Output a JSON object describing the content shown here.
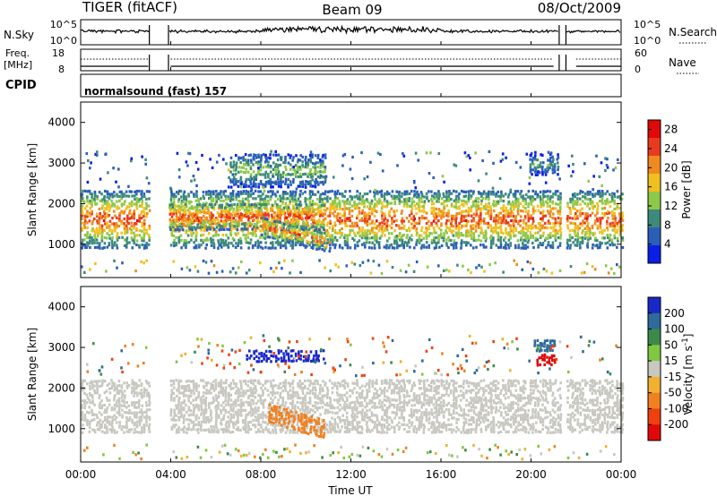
{
  "header": {
    "radar": "TIGER (fitACF)",
    "beam": "Beam 09",
    "date": "08/Oct/2009"
  },
  "noise_panel": {
    "left_label": "N.Sky",
    "left_ticks": [
      "10^5",
      "10^0"
    ],
    "right_label": "N.Search",
    "right_ticks": [
      "10^5",
      "10^0"
    ]
  },
  "freq_panel": {
    "left_label_line1": "Freq.",
    "left_label_line2": "[MHz]",
    "left_ticks": [
      "18",
      "8"
    ],
    "right_label": "Nave",
    "right_ticks": [
      "60",
      "0"
    ]
  },
  "cpid_panel": {
    "label": "CPID",
    "program_text": "normalsound (fast) 157"
  },
  "chart_data": [
    {
      "type": "heatmap",
      "title": "",
      "xlabel": "Time UT",
      "ylabel": "Slant Range [km]",
      "xlim": [
        "00:00",
        "24:00"
      ],
      "ylim": [
        180,
        4500
      ],
      "x_ticks": [
        "00:00",
        "04:00",
        "08:00",
        "12:00",
        "16:00",
        "20:00",
        "00:00"
      ],
      "y_ticks": [
        1000,
        2000,
        3000,
        4000
      ],
      "colorbar": {
        "label": "Power [dB]",
        "ticks": [
          4,
          8,
          12,
          16,
          20,
          24,
          28
        ],
        "range": [
          0,
          30
        ],
        "colors": [
          "#0a1ee6",
          "#2a5fb8",
          "#3c8a7a",
          "#8cc84a",
          "#f0c020",
          "#f08a1e",
          "#e83a1e",
          "#e00808"
        ]
      },
      "data_gaps_hours": [
        [
          3.05,
          3.9
        ],
        [
          21.25,
          21.55
        ]
      ],
      "scatter_regions": [
        {
          "name": "main F-region band",
          "start_hr": 0.0,
          "end_hr": 24.0,
          "range_km": [
            900,
            2300
          ],
          "peak_dB": 28
        },
        {
          "name": "high-power band 04-11 UT",
          "start_hr": 3.9,
          "end_hr": 10.8,
          "range_km": [
            1350,
            2000
          ],
          "peak_dB": 28
        },
        {
          "name": "descending echo 08-11 UT",
          "start_hr": 8.0,
          "end_hr": 11.0,
          "range_km": [
            800,
            1400
          ],
          "peak_dB": 28
        },
        {
          "name": "upper patch 06-11 UT",
          "start_hr": 6.5,
          "end_hr": 10.8,
          "range_km": [
            2400,
            3200
          ],
          "peak_dB": 16
        },
        {
          "name": "upper patch 20-21 UT",
          "start_hr": 19.9,
          "end_hr": 21.2,
          "range_km": [
            2700,
            3200
          ],
          "peak_dB": 12
        }
      ]
    },
    {
      "type": "heatmap",
      "title": "",
      "xlabel": "Time UT",
      "ylabel": "Slant Range [km]",
      "xlim": [
        "00:00",
        "24:00"
      ],
      "ylim": [
        180,
        4500
      ],
      "x_ticks": [
        "00:00",
        "04:00",
        "08:00",
        "12:00",
        "16:00",
        "20:00",
        "00:00"
      ],
      "y_ticks": [
        1000,
        2000,
        3000,
        4000
      ],
      "colorbar": {
        "label": "Velocity [m s^-1]",
        "ticks": [
          200,
          100,
          50,
          15,
          -15,
          -50,
          -100,
          -200
        ],
        "range": [
          -250,
          250
        ],
        "colors": [
          "#1a28c8",
          "#2e6a9a",
          "#3c8a4a",
          "#80c840",
          "#c8c8c0",
          "#f0b030",
          "#f08020",
          "#f04010",
          "#e00808"
        ]
      },
      "data_gaps_hours": [
        [
          3.05,
          3.9
        ],
        [
          21.25,
          21.55
        ]
      ],
      "scatter_regions": [
        {
          "name": "ground scatter band",
          "start_hr": 0.0,
          "end_hr": 24.0,
          "range_km": [
            900,
            2200
          ],
          "velocity": 0
        },
        {
          "name": "positive velocity patch 06-11 UT",
          "start_hr": 7.3,
          "end_hr": 10.8,
          "range_km": [
            2650,
            2950
          ],
          "velocity": 220
        },
        {
          "name": "negative velocity patch 08-11 UT",
          "start_hr": 8.3,
          "end_hr": 10.8,
          "range_km": [
            750,
            1400
          ],
          "velocity": -60
        },
        {
          "name": "positive velocity patch 20-21 UT",
          "start_hr": 20.1,
          "end_hr": 21.0,
          "range_km": [
            2900,
            3200
          ],
          "velocity": 150
        },
        {
          "name": "negative velocity patch 20-21 UT",
          "start_hr": 20.2,
          "end_hr": 21.0,
          "range_km": [
            2550,
            2800
          ],
          "velocity": -220
        }
      ]
    }
  ]
}
